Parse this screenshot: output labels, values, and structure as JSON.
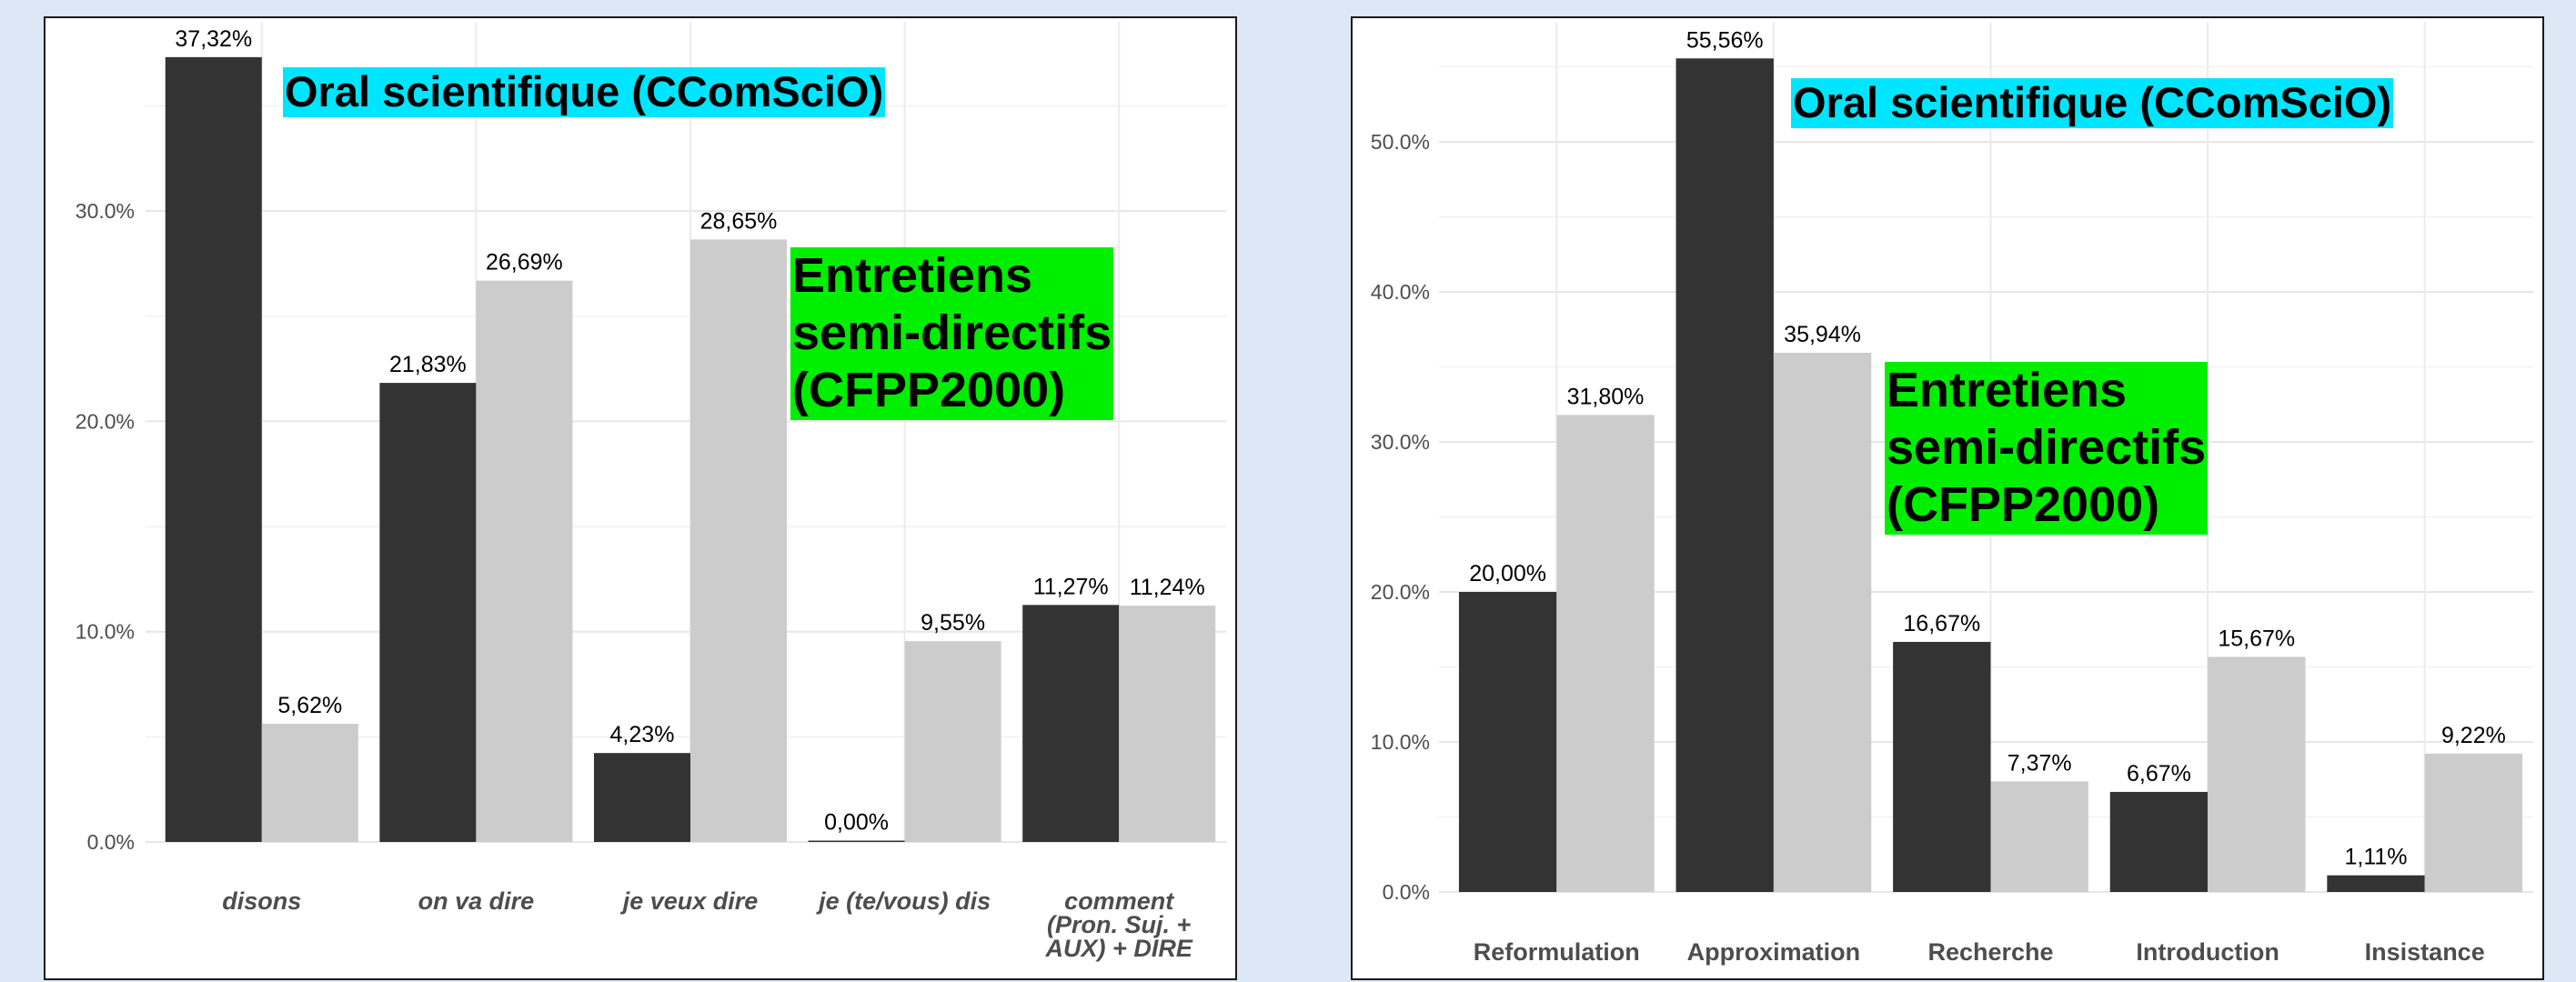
{
  "chart_data": [
    {
      "type": "bar",
      "categories": [
        "disons",
        "on va dire",
        "je veux dire",
        "je (te/vous) dis",
        "comment\n(Pron. Suj. +\nAUX) + DIRE"
      ],
      "series": [
        {
          "name": "Oral scientifique (CComSciO)",
          "color": "#333333",
          "values": [
            37.32,
            21.83,
            4.23,
            0.0,
            11.27
          ],
          "labels": [
            "37,32%",
            "21,83%",
            "4,23%",
            "0,00%",
            "11,27%"
          ]
        },
        {
          "name": "Entretiens\nsemi-directifs\n(CFPP2000)",
          "color": "#cccccc",
          "values": [
            5.62,
            26.69,
            28.65,
            9.55,
            11.24
          ],
          "labels": [
            "5,62%",
            "26,69%",
            "28,65%",
            "9,55%",
            "11,24%"
          ]
        }
      ],
      "yticks": [
        "0.0%",
        "10.0%",
        "20.0%",
        "30.0%"
      ],
      "ytick_values": [
        0,
        10,
        20,
        30
      ],
      "ylim": [
        0,
        39
      ],
      "italic_categories": true,
      "grid": true
    },
    {
      "type": "bar",
      "categories": [
        "Reformulation",
        "Approximation",
        "Recherche",
        "Introduction",
        "Insistance"
      ],
      "series": [
        {
          "name": "Oral scientifique (CComSciO)",
          "color": "#333333",
          "values": [
            20.0,
            55.56,
            16.67,
            6.67,
            1.11
          ],
          "labels": [
            "20,00%",
            "55,56%",
            "16,67%",
            "6,67%",
            "1,11%"
          ]
        },
        {
          "name": "Entretiens\nsemi-directifs\n(CFPP2000)",
          "color": "#cccccc",
          "values": [
            31.8,
            35.94,
            7.37,
            15.67,
            9.22
          ],
          "labels": [
            "31,80%",
            "35,94%",
            "7,37%",
            "15,67%",
            "9,22%"
          ]
        }
      ],
      "yticks": [
        "0.0%",
        "10.0%",
        "20.0%",
        "30.0%",
        "40.0%",
        "50.0%"
      ],
      "ytick_values": [
        0,
        10,
        20,
        30,
        40,
        50
      ],
      "ylim": [
        0,
        58
      ],
      "italic_categories": false,
      "grid": true
    }
  ],
  "colors": {
    "legend_blue": "#00e5ff",
    "legend_green": "#00ee00",
    "background": "#dce8f5"
  }
}
